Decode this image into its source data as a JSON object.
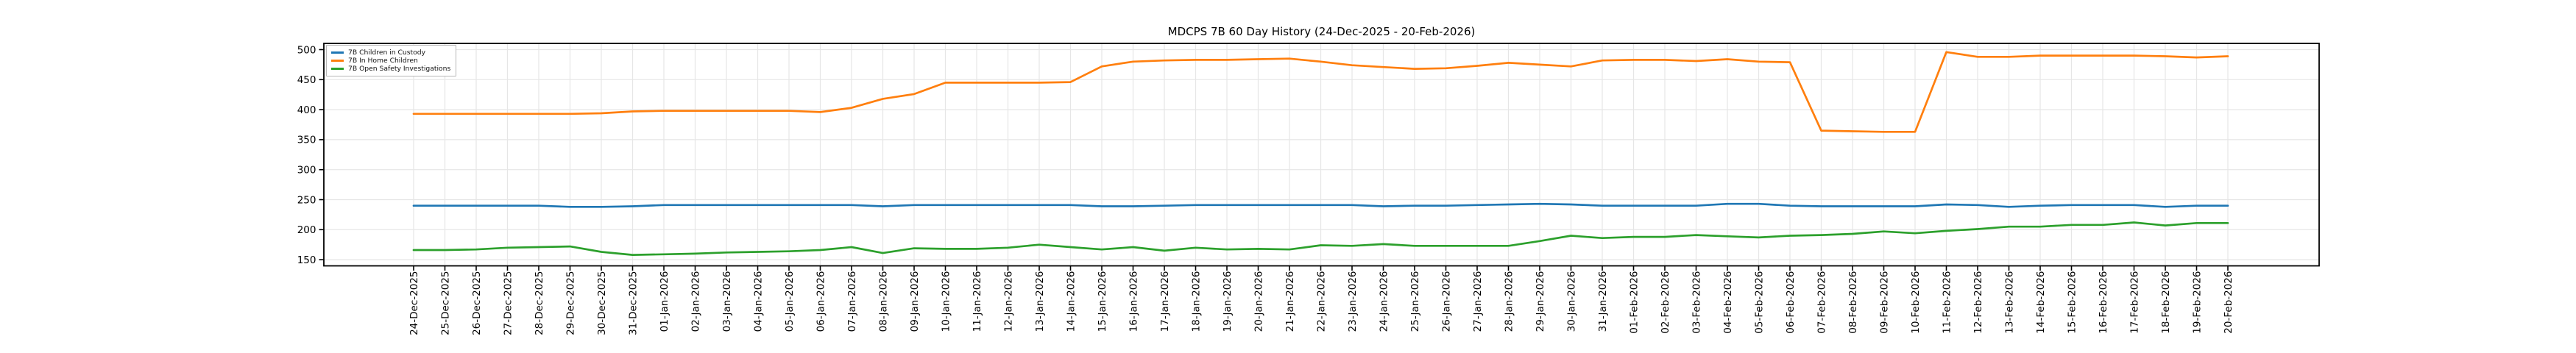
{
  "chart_data": {
    "type": "line",
    "title": "MDCPS 7B 60 Day History (24-Dec-2025 - 20-Feb-2026)",
    "xlabel": "",
    "ylabel": "",
    "grid": true,
    "legend_position": "upper-left",
    "y_ticks": [
      150,
      200,
      250,
      300,
      350,
      400,
      450,
      500
    ],
    "ylim": [
      139.7,
      510.4
    ],
    "x_categories": [
      "24-Dec-2025",
      "25-Dec-2025",
      "26-Dec-2025",
      "27-Dec-2025",
      "28-Dec-2025",
      "29-Dec-2025",
      "30-Dec-2025",
      "31-Dec-2025",
      "01-Jan-2026",
      "02-Jan-2026",
      "03-Jan-2026",
      "04-Jan-2026",
      "05-Jan-2026",
      "06-Jan-2026",
      "07-Jan-2026",
      "08-Jan-2026",
      "09-Jan-2026",
      "10-Jan-2026",
      "11-Jan-2026",
      "12-Jan-2026",
      "13-Jan-2026",
      "14-Jan-2026",
      "15-Jan-2026",
      "16-Jan-2026",
      "17-Jan-2026",
      "18-Jan-2026",
      "19-Jan-2026",
      "20-Jan-2026",
      "21-Jan-2026",
      "22-Jan-2026",
      "23-Jan-2026",
      "24-Jan-2026",
      "25-Jan-2026",
      "26-Jan-2026",
      "27-Jan-2026",
      "28-Jan-2026",
      "29-Jan-2026",
      "30-Jan-2026",
      "31-Jan-2026",
      "01-Feb-2026",
      "02-Feb-2026",
      "03-Feb-2026",
      "04-Feb-2026",
      "05-Feb-2026",
      "06-Feb-2026",
      "07-Feb-2026",
      "08-Feb-2026",
      "09-Feb-2026",
      "10-Feb-2026",
      "11-Feb-2026",
      "12-Feb-2026",
      "13-Feb-2026",
      "14-Feb-2026",
      "15-Feb-2026",
      "16-Feb-2026",
      "17-Feb-2026",
      "18-Feb-2026",
      "19-Feb-2026",
      "20-Feb-2026"
    ],
    "series": [
      {
        "name": "7B Children in Custody",
        "color": "#1f77b4",
        "values": [
          240,
          240,
          240,
          240,
          240,
          238,
          238,
          239,
          241,
          241,
          241,
          241,
          241,
          241,
          241,
          239,
          241,
          241,
          241,
          241,
          241,
          241,
          239,
          239,
          240,
          241,
          241,
          241,
          241,
          241,
          241,
          239,
          240,
          240,
          241,
          242,
          243,
          242,
          240,
          240,
          240,
          240,
          243,
          243,
          240,
          239,
          239,
          239,
          239,
          242,
          241,
          238,
          240,
          241,
          241,
          241,
          238,
          240,
          240
        ]
      },
      {
        "name": "7B In Home Children",
        "color": "#ff7f0e",
        "values": [
          393,
          393,
          393,
          393,
          393,
          393,
          394,
          397,
          398,
          398,
          398,
          398,
          398,
          396,
          403,
          418,
          426,
          445,
          445,
          445,
          445,
          446,
          472,
          480,
          482,
          483,
          483,
          484,
          485,
          480,
          474,
          471,
          468,
          469,
          473,
          478,
          475,
          472,
          482,
          483,
          483,
          481,
          484,
          480,
          479,
          365,
          364,
          363,
          363,
          496,
          488,
          488,
          490,
          490,
          490,
          490,
          489,
          487,
          489
        ]
      },
      {
        "name": "7B Open Safety Investigations",
        "color": "#2ca02c",
        "values": [
          166,
          166,
          167,
          170,
          171,
          172,
          163,
          158,
          159,
          160,
          162,
          163,
          164,
          166,
          171,
          161,
          169,
          168,
          168,
          170,
          175,
          171,
          167,
          171,
          165,
          170,
          167,
          168,
          167,
          174,
          173,
          176,
          173,
          173,
          173,
          173,
          181,
          190,
          186,
          188,
          188,
          191,
          189,
          187,
          190,
          191,
          193,
          197,
          194,
          198,
          201,
          205,
          205,
          208,
          208,
          212,
          207,
          211,
          211
        ]
      }
    ],
    "style": {
      "grid_color": "#e6e6e6",
      "spine_color": "#000000",
      "tick_color": "#000000",
      "text_color": "#000000",
      "background": "#ffffff"
    }
  }
}
